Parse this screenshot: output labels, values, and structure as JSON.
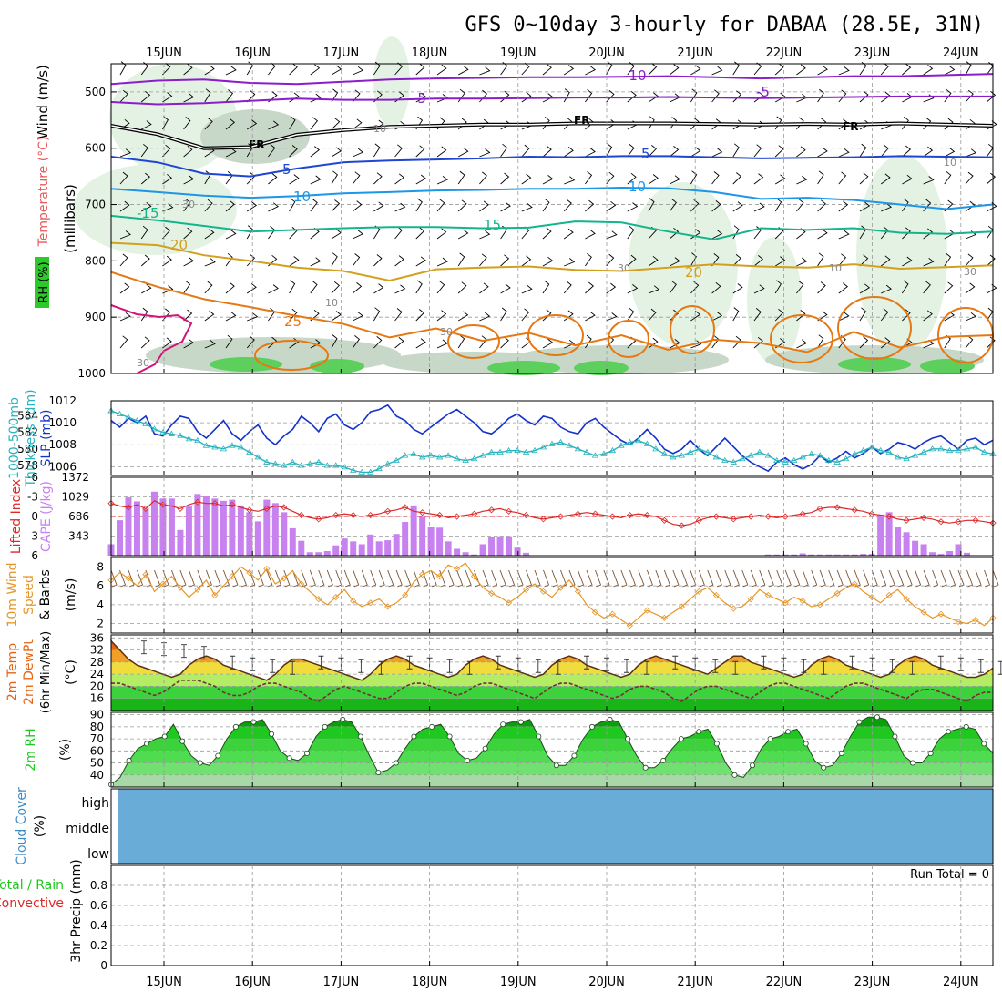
{
  "title": "GFS 0~10day 3-hourly for DABAA (28.5E, 31N)",
  "days": [
    "15JUN",
    "16JUN",
    "17JUN",
    "18JUN",
    "19JUN",
    "20JUN",
    "21JUN",
    "22JUN",
    "23JUN",
    "24JUN"
  ],
  "colors": {
    "purple": "#8a1ec8",
    "blue": "#1e46d2",
    "cyan_blue": "#1e96e6",
    "teal": "#14b48c",
    "gold": "#d2a01e",
    "orange": "#e67814",
    "magenta": "#d2147a",
    "black": "#000000",
    "slp": "#1432c8",
    "thick": "#28b4be",
    "cape": "#c882f0",
    "li": "#dc2828",
    "wind10": "#e69628",
    "cloud": "#6aacd8",
    "rh_fill": "#2cc82c"
  },
  "chart_data": [
    {
      "type": "contour",
      "name": "upper_air",
      "ylabel_left": [
        "RH (%)",
        "Temperature (°C)",
        "Wind (m/s)"
      ],
      "ylabel_right": "(millibars)",
      "y_ticks": [
        "500",
        "600",
        "700",
        "800",
        "900",
        "1000"
      ],
      "ylim": [
        1000,
        450
      ],
      "contours": [
        {
          "label": "-10",
          "color": "purple",
          "p": [
            486,
            480,
            478,
            484,
            486,
            482,
            478,
            476,
            475,
            474,
            474,
            473,
            472,
            474,
            476,
            474,
            472,
            472,
            470,
            468
          ]
        },
        {
          "label": "-5",
          "color": "purple",
          "p": [
            518,
            522,
            520,
            516,
            512,
            514,
            514,
            512,
            512,
            511,
            510,
            510,
            509,
            510,
            511,
            510,
            509,
            508,
            508,
            508
          ]
        },
        {
          "label": "FR",
          "color": "black",
          "p": [
            560,
            575,
            600,
            598,
            576,
            568,
            562,
            560,
            558,
            558,
            556,
            556,
            556,
            557,
            558,
            557,
            558,
            556,
            558,
            560
          ]
        },
        {
          "label": "-5",
          "color": "blue",
          "p": [
            615,
            625,
            645,
            650,
            636,
            625,
            622,
            620,
            618,
            615,
            616,
            614,
            614,
            616,
            618,
            617,
            616,
            614,
            615,
            616
          ]
        },
        {
          "label": "10",
          "color": "cyan_blue",
          "p": [
            672,
            678,
            684,
            688,
            685,
            680,
            678,
            675,
            674,
            672,
            672,
            670,
            671,
            678,
            690,
            688,
            692,
            700,
            708,
            700
          ]
        },
        {
          "label": "15",
          "color": "teal",
          "p": [
            720,
            728,
            738,
            748,
            745,
            742,
            740,
            740,
            742,
            741,
            730,
            732,
            748,
            762,
            742,
            745,
            742,
            750,
            752,
            748
          ]
        },
        {
          "label": "20",
          "color": "gold",
          "p": [
            768,
            772,
            790,
            800,
            812,
            818,
            835,
            815,
            812,
            810,
            816,
            818,
            812,
            806,
            810,
            812,
            806,
            814,
            811,
            808
          ]
        },
        {
          "label": "25",
          "color": "orange",
          "p": [
            820,
            846,
            868,
            882,
            898,
            912,
            936,
            920,
            942,
            928,
            950,
            932,
            958,
            940,
            946,
            962,
            926,
            954,
            935,
            932
          ]
        }
      ],
      "labels": [
        "-10",
        "-5",
        "FR",
        "-5",
        "10",
        "15",
        "20",
        "25",
        "FR",
        "5",
        "10",
        "15",
        "20",
        "-10",
        "-5",
        "FR",
        "5",
        "10",
        "30",
        "30",
        "10",
        "10",
        "30"
      ]
    },
    {
      "type": "line",
      "name": "slp_thickness",
      "ylabel_left": [
        "1000-500mb",
        "Thickness (dm)"
      ],
      "ylabel_right": "SLP (mb)",
      "left_ticks": [
        "584",
        "582",
        "580",
        "578"
      ],
      "right_ticks": [
        "1012",
        "1010",
        "1008",
        "1006"
      ],
      "series": [
        {
          "name": "SLP",
          "color": "slp",
          "values": [
            1010.2,
            1009.6,
            1010.4,
            1010.0,
            1010.6,
            1009.0,
            1008.8,
            1009.8,
            1010.6,
            1010.4,
            1009.2,
            1008.6,
            1009.4,
            1010.2,
            1009.0,
            1008.4,
            1009.2,
            1009.8,
            1008.6,
            1008.0,
            1008.8,
            1009.4,
            1010.6,
            1010.0,
            1009.2,
            1010.4,
            1010.8,
            1009.8,
            1009.4,
            1010.0,
            1011.0,
            1011.2,
            1011.6,
            1010.6,
            1010.2,
            1009.4,
            1009.0,
            1009.6,
            1010.2,
            1010.8,
            1011.2,
            1010.6,
            1010.0,
            1009.2,
            1009.0,
            1009.6,
            1010.4,
            1010.8,
            1010.2,
            1009.8,
            1010.6,
            1010.4,
            1009.6,
            1009.2,
            1009.0,
            1010.0,
            1010.4,
            1009.6,
            1009.0,
            1008.4,
            1008.0,
            1008.6,
            1009.4,
            1008.6,
            1007.6,
            1007.2,
            1007.6,
            1008.4,
            1007.6,
            1007.0,
            1007.8,
            1008.6,
            1007.8,
            1007.0,
            1006.4,
            1006.0,
            1005.6,
            1006.4,
            1006.8,
            1006.2,
            1005.8,
            1006.2,
            1007.0,
            1006.4,
            1006.8,
            1007.4,
            1006.8,
            1007.2,
            1007.8,
            1007.2,
            1007.6,
            1008.2,
            1008.0,
            1007.6,
            1008.2,
            1008.6,
            1008.8,
            1008.2,
            1007.6,
            1008.4,
            1008.6,
            1008.0,
            1008.4
          ]
        },
        {
          "name": "Thickness",
          "color": "thick",
          "values": [
            584.6,
            584.2,
            583.8,
            583.4,
            583.0,
            582.4,
            582.0,
            581.8,
            581.6,
            581.2,
            581.0,
            580.4,
            580.2,
            580.0,
            580.4,
            580.2,
            579.6,
            579.0,
            578.4,
            578.2,
            578.0,
            578.4,
            578.0,
            578.2,
            578.4,
            578.0,
            578.0,
            577.8,
            577.4,
            577.2,
            577.2,
            577.6,
            578.2,
            578.6,
            579.2,
            579.4,
            579.0,
            579.2,
            579.0,
            579.2,
            578.8,
            578.6,
            578.8,
            579.2,
            579.6,
            579.6,
            579.8,
            579.8,
            579.6,
            579.8,
            580.2,
            580.6,
            580.8,
            580.4,
            580.0,
            579.6,
            579.2,
            579.4,
            579.8,
            580.4,
            580.8,
            581.0,
            580.6,
            580.0,
            579.4,
            579.0,
            579.2,
            579.6,
            580.0,
            579.6,
            579.0,
            578.6,
            578.4,
            578.8,
            579.2,
            579.6,
            579.2,
            578.6,
            578.4,
            578.6,
            579.0,
            579.4,
            579.2,
            578.6,
            578.4,
            578.8,
            579.4,
            579.8,
            580.2,
            579.8,
            579.6,
            579.0,
            578.8,
            579.2,
            579.6,
            580.0,
            580.0,
            579.8,
            579.8,
            580.0,
            580.2,
            579.6,
            579.4
          ]
        }
      ]
    },
    {
      "type": "bar",
      "name": "cape_li",
      "ylabel_left": [
        "Lifted Index",
        "CAPE (J/kg)"
      ],
      "li_ticks": [
        "-6",
        "-3",
        "0",
        "3",
        "6"
      ],
      "cape_ticks": [
        "1372",
        "1029",
        "686",
        "343"
      ],
      "cape": [
        200,
        620,
        1020,
        950,
        820,
        1120,
        1000,
        1000,
        450,
        860,
        1080,
        1040,
        1000,
        960,
        980,
        880,
        760,
        600,
        980,
        920,
        760,
        480,
        260,
        60,
        60,
        80,
        180,
        300,
        250,
        200,
        370,
        250,
        270,
        380,
        590,
        880,
        680,
        500,
        490,
        250,
        120,
        60,
        20,
        200,
        320,
        340,
        340,
        140,
        50,
        0,
        0,
        0,
        0,
        0,
        0,
        0,
        0,
        0,
        0,
        0,
        0,
        0,
        0,
        0,
        0,
        0,
        0,
        0,
        0,
        0,
        0,
        0,
        0,
        0,
        0,
        0,
        20,
        20,
        20,
        20,
        40,
        20,
        20,
        20,
        20,
        20,
        20,
        30,
        30,
        720,
        760,
        500,
        410,
        260,
        200,
        60,
        30,
        80,
        200,
        50,
        0,
        0,
        0
      ],
      "li": [
        -2.0,
        -1.6,
        -1.4,
        -1.8,
        -1.2,
        -2.4,
        -1.8,
        -1.6,
        -1.2,
        -1.8,
        -2.2,
        -2.0,
        -2.0,
        -1.6,
        -1.8,
        -1.4,
        -1.0,
        -0.8,
        -1.2,
        -1.6,
        -1.4,
        -0.8,
        -0.2,
        0.2,
        0.4,
        0.2,
        -0.2,
        -0.4,
        -0.2,
        0.0,
        -0.2,
        -0.4,
        -0.8,
        -1.0,
        -1.4,
        -0.8,
        -0.6,
        -0.4,
        -0.2,
        0.2,
        0.0,
        -0.2,
        -0.4,
        -0.8,
        -1.0,
        -1.2,
        -0.8,
        -0.6,
        -0.2,
        0.2,
        0.4,
        0.2,
        0.0,
        -0.2,
        -0.4,
        -0.6,
        -0.4,
        -0.2,
        0.0,
        0.2,
        -0.2,
        -0.4,
        -0.2,
        0.0,
        0.6,
        1.2,
        1.4,
        1.2,
        0.6,
        0.2,
        0.0,
        0.2,
        0.4,
        0.2,
        0.0,
        -0.2,
        0.0,
        0.2,
        0.0,
        -0.2,
        -0.4,
        -0.6,
        -1.2,
        -1.4,
        -1.4,
        -1.2,
        -1.0,
        -0.8,
        -0.4,
        -0.2,
        0.0,
        0.4,
        0.6,
        0.4,
        0.2,
        0.4,
        0.8,
        1.0,
        0.8,
        0.6,
        0.6,
        0.8,
        1.0
      ]
    },
    {
      "type": "line",
      "name": "wind10m",
      "ylabel_left": [
        "10m Wind",
        "Speed",
        "& Barbs"
      ],
      "ylabel_right": "(m/s)",
      "ticks": [
        "8",
        "6",
        "4",
        "2"
      ],
      "ylim": [
        1,
        9
      ],
      "values": [
        6.6,
        7.4,
        6.8,
        6.0,
        7.2,
        5.4,
        6.2,
        7.0,
        5.8,
        4.8,
        5.6,
        6.6,
        5.0,
        6.0,
        7.0,
        8.0,
        7.4,
        6.6,
        7.8,
        6.2,
        6.8,
        7.6,
        6.2,
        5.4,
        4.6,
        4.0,
        4.8,
        5.6,
        4.4,
        3.8,
        4.2,
        4.6,
        3.8,
        4.2,
        5.0,
        6.4,
        7.2,
        7.6,
        7.0,
        8.2,
        7.8,
        8.4,
        7.0,
        5.8,
        5.2,
        4.8,
        4.2,
        4.8,
        5.6,
        6.2,
        5.4,
        4.8,
        5.8,
        6.6,
        5.4,
        4.0,
        3.2,
        2.6,
        3.0,
        2.4,
        1.8,
        2.6,
        3.4,
        3.0,
        2.6,
        3.2,
        3.8,
        4.6,
        5.4,
        5.8,
        5.0,
        4.2,
        3.6,
        3.8,
        4.6,
        5.6,
        5.0,
        4.6,
        4.2,
        4.8,
        4.4,
        3.8,
        4.0,
        4.6,
        5.2,
        5.8,
        6.2,
        5.4,
        4.8,
        4.2,
        5.0,
        5.6,
        4.6,
        3.8,
        3.2,
        2.6,
        3.0,
        2.6,
        2.2,
        2.0,
        2.4,
        1.8,
        2.6
      ]
    },
    {
      "type": "area",
      "name": "temp2m",
      "ylabel_left": [
        "2m Temp",
        "2m DewPt",
        "(6hr Min/Max)"
      ],
      "ylabel_right": "(°C)",
      "ticks": [
        "36",
        "32",
        "28",
        "24",
        "20",
        "16"
      ],
      "ylim": [
        12,
        37
      ],
      "temp": [
        35,
        32,
        29,
        27,
        26,
        25,
        24,
        23,
        24,
        27,
        29,
        30,
        29,
        27,
        26,
        25,
        24,
        23,
        22,
        24,
        27,
        29,
        29,
        28,
        27,
        26,
        25,
        24,
        23,
        22,
        24,
        27,
        29,
        30,
        29,
        27,
        26,
        25,
        24,
        23,
        24,
        27,
        29,
        30,
        29,
        27,
        26,
        25,
        24,
        23,
        24,
        27,
        29,
        30,
        29,
        27,
        26,
        25,
        24,
        23,
        24,
        27,
        29,
        30,
        29,
        28,
        27,
        26,
        25,
        24,
        26,
        28,
        30,
        30,
        28,
        27,
        26,
        25,
        24,
        23,
        24,
        27,
        29,
        30,
        29,
        27,
        26,
        25,
        24,
        23,
        24,
        27,
        29,
        30,
        29,
        27,
        26,
        25,
        24,
        23,
        23,
        24,
        26
      ],
      "dew": [
        21,
        21,
        20,
        19,
        18,
        17,
        18,
        20,
        22,
        22,
        22,
        21,
        20,
        18,
        17,
        17,
        18,
        20,
        21,
        21,
        20,
        19,
        18,
        16,
        15,
        17,
        19,
        20,
        19,
        18,
        17,
        16,
        16,
        18,
        20,
        21,
        21,
        20,
        19,
        18,
        17,
        18,
        20,
        21,
        21,
        20,
        19,
        18,
        17,
        16,
        18,
        20,
        21,
        21,
        20,
        19,
        18,
        17,
        16,
        17,
        19,
        20,
        20,
        19,
        18,
        16,
        15,
        17,
        19,
        20,
        20,
        19,
        18,
        17,
        16,
        18,
        20,
        21,
        21,
        20,
        19,
        18,
        17,
        16,
        18,
        20,
        21,
        21,
        20,
        19,
        18,
        17,
        16,
        18,
        19,
        19,
        18,
        17,
        16,
        15,
        17,
        18,
        18
      ],
      "max_markers": [
        35,
        30,
        30,
        30,
        30,
        30,
        30,
        30,
        30,
        30
      ],
      "min_markers": [
        24,
        24,
        23,
        22,
        23,
        23,
        23,
        24,
        24,
        23
      ]
    },
    {
      "type": "area",
      "name": "rh2m",
      "ylabel_left": "2m RH",
      "ylabel_right": "(%)",
      "ticks": [
        "90",
        "80",
        "70",
        "60",
        "50",
        "40"
      ],
      "ylim": [
        30,
        92
      ],
      "values": [
        32,
        38,
        52,
        62,
        66,
        70,
        72,
        82,
        68,
        56,
        50,
        48,
        56,
        70,
        80,
        84,
        84,
        86,
        74,
        60,
        54,
        52,
        58,
        72,
        80,
        84,
        86,
        84,
        72,
        56,
        42,
        44,
        50,
        62,
        72,
        78,
        80,
        82,
        72,
        58,
        52,
        54,
        62,
        74,
        82,
        84,
        84,
        86,
        72,
        56,
        48,
        48,
        56,
        70,
        80,
        84,
        86,
        84,
        70,
        56,
        46,
        46,
        52,
        62,
        70,
        72,
        76,
        78,
        66,
        50,
        40,
        38,
        48,
        62,
        70,
        72,
        76,
        78,
        66,
        52,
        46,
        48,
        58,
        72,
        84,
        88,
        88,
        86,
        72,
        56,
        50,
        50,
        58,
        70,
        76,
        78,
        80,
        78,
        66,
        58
      ]
    },
    {
      "type": "heatmap",
      "name": "cloud_cover",
      "ylabel_left": [
        "Cloud Cover",
        "(%)"
      ],
      "levels": [
        "high",
        "middle",
        "low"
      ]
    },
    {
      "type": "bar",
      "name": "precip",
      "ylabel_left": [
        "Total / Rain",
        "Convective",
        "3hr Precip (mm)"
      ],
      "ticks": [
        "0.8",
        "0.6",
        "0.4",
        "0.2",
        "0"
      ],
      "ylim": [
        0,
        1
      ],
      "run_total_label": "Run Total = 0",
      "values": []
    }
  ]
}
